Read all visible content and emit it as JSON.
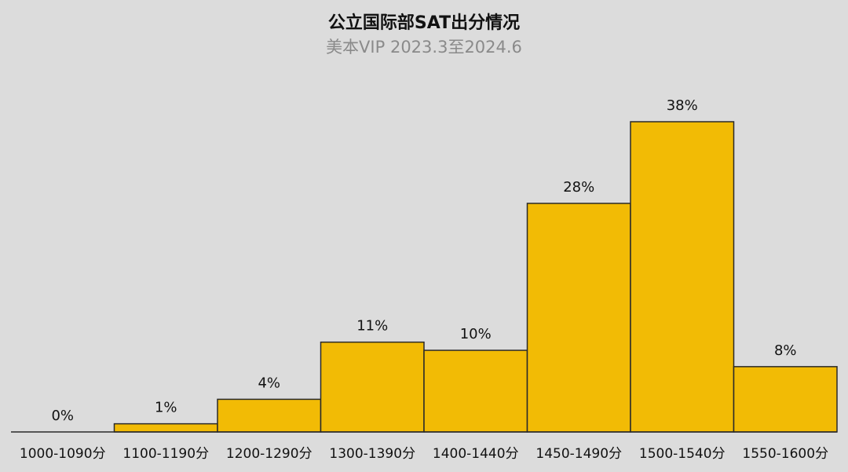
{
  "chart_data": {
    "type": "bar",
    "title": "公立国际部SAT出分情况",
    "subtitle": "美本VIP 2023.3至2024.6",
    "categories": [
      "1000-1090分",
      "1100-1190分",
      "1200-1290分",
      "1300-1390分",
      "1400-1440分",
      "1450-1490分",
      "1500-1540分",
      "1550-1600分"
    ],
    "values": [
      0,
      1,
      4,
      11,
      10,
      28,
      38,
      8
    ],
    "value_labels": [
      "0%",
      "1%",
      "4%",
      "11%",
      "10%",
      "28%",
      "38%",
      "8%"
    ],
    "color": "#f2bb05"
  }
}
